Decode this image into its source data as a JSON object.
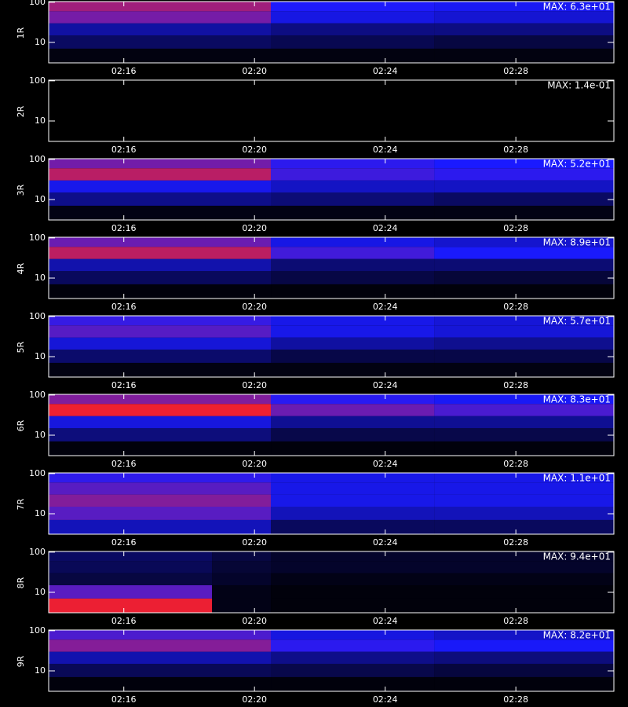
{
  "chart_data": [
    {
      "type": "heatmap",
      "y_label": "1R",
      "annotation": {
        "value": 63,
        "label": "MAX: 6.3e+01"
      },
      "log_y": true,
      "colormap": [
        "#000000",
        "#1a1aff",
        "#ff2020",
        "#ffff00",
        "#ffffff"
      ],
      "x": [
        133.7,
        140.5,
        145.5,
        151
      ],
      "y": [
        3.1,
        7,
        15,
        30,
        60,
        104
      ],
      "values": [
        [
          1,
          1,
          1
        ],
        [
          6,
          5,
          4
        ],
        [
          10,
          8,
          8
        ],
        [
          22,
          14,
          13
        ],
        [
          25,
          16,
          15
        ]
      ],
      "xlim": [
        133.7,
        151
      ],
      "xticks": [
        {
          "value": 136,
          "label": "02:16"
        },
        {
          "value": 140,
          "label": "02:20"
        },
        {
          "value": 144,
          "label": "02:24"
        },
        {
          "value": 148,
          "label": "02:28"
        }
      ],
      "ylim": [
        3.1,
        104
      ],
      "yticks": [
        10,
        100
      ]
    },
    {
      "type": "heatmap",
      "y_label": "2R",
      "annotation": {
        "value": 0.14,
        "label": "MAX: 1.4e-01"
      },
      "log_y": true,
      "colormap": [
        "#000000",
        "#1a1aff",
        "#ff2020",
        "#ffff00",
        "#ffffff"
      ],
      "x": [
        133.7,
        140.5,
        145.5,
        151
      ],
      "y": [
        3.1,
        7,
        15,
        30,
        60,
        104
      ],
      "values": [
        [
          0,
          0,
          0
        ],
        [
          0,
          0,
          0
        ],
        [
          0,
          0,
          0
        ],
        [
          0,
          0,
          0
        ],
        [
          0,
          0,
          0
        ]
      ],
      "xlim": [
        133.7,
        151
      ],
      "xticks": [
        {
          "value": 136,
          "label": "02:16"
        },
        {
          "value": 140,
          "label": "02:20"
        },
        {
          "value": 144,
          "label": "02:24"
        },
        {
          "value": 148,
          "label": "02:28"
        }
      ],
      "ylim": [
        3.1,
        104
      ],
      "yticks": [
        10,
        100
      ]
    },
    {
      "type": "heatmap",
      "y_label": "3R",
      "annotation": {
        "value": 52,
        "label": "MAX: 5.2e+01"
      },
      "log_y": true,
      "colormap": [
        "#000000",
        "#1a1aff",
        "#ff2020",
        "#ffff00",
        "#ffffff"
      ],
      "x": [
        133.7,
        140.5,
        145.5,
        151
      ],
      "y": [
        3.1,
        7,
        15,
        30,
        60,
        104
      ],
      "values": [
        [
          1,
          1,
          1
        ],
        [
          7,
          6,
          5
        ],
        [
          12,
          10,
          10
        ],
        [
          22,
          15,
          14
        ],
        [
          18,
          14,
          13
        ]
      ],
      "xlim": [
        133.7,
        151
      ],
      "xticks": [
        {
          "value": 136,
          "label": "02:16"
        },
        {
          "value": 140,
          "label": "02:20"
        },
        {
          "value": 144,
          "label": "02:24"
        },
        {
          "value": 148,
          "label": "02:28"
        }
      ],
      "ylim": [
        3.1,
        104
      ],
      "yticks": [
        10,
        100
      ]
    },
    {
      "type": "heatmap",
      "y_label": "4R",
      "annotation": {
        "value": 89,
        "label": "MAX: 8.9e+01"
      },
      "log_y": true,
      "colormap": [
        "#000000",
        "#1a1aff",
        "#ff2020",
        "#ffff00",
        "#ffffff"
      ],
      "x": [
        133.7,
        140.5,
        145.5,
        151
      ],
      "y": [
        3.1,
        7,
        15,
        30,
        60,
        104
      ],
      "values": [
        [
          1,
          1,
          1
        ],
        [
          8,
          6,
          5
        ],
        [
          15,
          10,
          10
        ],
        [
          38,
          26,
          22
        ],
        [
          30,
          20,
          18
        ]
      ],
      "xlim": [
        133.7,
        151
      ],
      "xticks": [
        {
          "value": 136,
          "label": "02:16"
        },
        {
          "value": 140,
          "label": "02:20"
        },
        {
          "value": 144,
          "label": "02:24"
        },
        {
          "value": 148,
          "label": "02:28"
        }
      ],
      "ylim": [
        3.1,
        104
      ],
      "yticks": [
        10,
        100
      ]
    },
    {
      "type": "heatmap",
      "y_label": "5R",
      "annotation": {
        "value": 57,
        "label": "MAX: 5.7e+01"
      },
      "log_y": true,
      "colormap": [
        "#000000",
        "#1a1aff",
        "#ff2020",
        "#ffff00",
        "#ffffff"
      ],
      "x": [
        133.7,
        140.5,
        145.5,
        151
      ],
      "y": [
        3.1,
        7,
        15,
        30,
        60,
        104
      ],
      "values": [
        [
          1,
          1,
          1
        ],
        [
          6,
          4,
          4
        ],
        [
          12,
          9,
          8
        ],
        [
          18,
          13,
          12
        ],
        [
          16,
          13,
          12
        ]
      ],
      "xlim": [
        133.7,
        151
      ],
      "xticks": [
        {
          "value": 136,
          "label": "02:16"
        },
        {
          "value": 140,
          "label": "02:20"
        },
        {
          "value": 144,
          "label": "02:24"
        },
        {
          "value": 148,
          "label": "02:28"
        }
      ],
      "ylim": [
        3.1,
        104
      ],
      "yticks": [
        10,
        100
      ]
    },
    {
      "type": "heatmap",
      "y_label": "6R",
      "annotation": {
        "value": 83,
        "label": "MAX: 8.3e+01"
      },
      "log_y": true,
      "colormap": [
        "#000000",
        "#1a1aff",
        "#ff2020",
        "#ffff00",
        "#ffffff"
      ],
      "x": [
        133.7,
        140.5,
        145.5,
        151
      ],
      "y": [
        3.1,
        7,
        15,
        30,
        60,
        104
      ],
      "values": [
        [
          1,
          1,
          1
        ],
        [
          10,
          6,
          6
        ],
        [
          18,
          12,
          12
        ],
        [
          40,
          28,
          25
        ],
        [
          30,
          22,
          20
        ]
      ],
      "xlim": [
        133.7,
        151
      ],
      "xticks": [
        {
          "value": 136,
          "label": "02:16"
        },
        {
          "value": 140,
          "label": "02:20"
        },
        {
          "value": 144,
          "label": "02:24"
        },
        {
          "value": 148,
          "label": "02:28"
        }
      ],
      "ylim": [
        3.1,
        104
      ],
      "yticks": [
        10,
        100
      ]
    },
    {
      "type": "heatmap",
      "y_label": "7R",
      "annotation": {
        "value": 11,
        "label": "MAX: 1.1e+01"
      },
      "log_y": true,
      "colormap": [
        "#000000",
        "#1a1aff",
        "#ff2020",
        "#ffff00",
        "#ffffff"
      ],
      "x": [
        133.7,
        140.5,
        145.5,
        151
      ],
      "y": [
        3.1,
        7,
        15,
        30,
        60,
        104
      ],
      "values": [
        [
          2,
          1,
          1
        ],
        [
          3.5,
          2,
          2
        ],
        [
          4,
          2.5,
          2.5
        ],
        [
          3.5,
          2.5,
          2.5
        ],
        [
          3,
          2.5,
          2.5
        ]
      ],
      "xlim": [
        133.7,
        151
      ],
      "xticks": [
        {
          "value": 136,
          "label": "02:16"
        },
        {
          "value": 140,
          "label": "02:20"
        },
        {
          "value": 144,
          "label": "02:24"
        },
        {
          "value": 148,
          "label": "02:28"
        }
      ],
      "ylim": [
        3.1,
        104
      ],
      "yticks": [
        10,
        100
      ]
    },
    {
      "type": "heatmap",
      "y_label": "8R",
      "annotation": {
        "value": 94,
        "label": "MAX: 9.4e+01"
      },
      "log_y": true,
      "colormap": [
        "#000000",
        "#1a1aff",
        "#ff2020",
        "#ffff00",
        "#ffffff"
      ],
      "x": [
        133.7,
        138.7,
        140.5,
        151
      ],
      "y": [
        3.1,
        7,
        15,
        30,
        60,
        104
      ],
      "values": [
        [
          45,
          2,
          1
        ],
        [
          30,
          2,
          1
        ],
        [
          6,
          4,
          2
        ],
        [
          8,
          5,
          4
        ],
        [
          9,
          6,
          4
        ]
      ],
      "xlim": [
        133.7,
        151
      ],
      "xticks": [
        {
          "value": 136,
          "label": "02:16"
        },
        {
          "value": 140,
          "label": "02:20"
        },
        {
          "value": 144,
          "label": "02:24"
        },
        {
          "value": 148,
          "label": "02:28"
        }
      ],
      "ylim": [
        3.1,
        104
      ],
      "yticks": [
        10,
        100
      ]
    },
    {
      "type": "heatmap",
      "y_label": "9R",
      "annotation": {
        "value": 82,
        "label": "MAX: 8.2e+01"
      },
      "log_y": true,
      "colormap": [
        "#000000",
        "#1a1aff",
        "#ff2020",
        "#ffff00",
        "#ffffff"
      ],
      "x": [
        133.7,
        140.5,
        145.5,
        151
      ],
      "y": [
        3.1,
        7,
        15,
        30,
        60,
        104
      ],
      "values": [
        [
          1,
          1,
          1
        ],
        [
          7,
          6,
          5
        ],
        [
          14,
          11,
          10
        ],
        [
          30,
          22,
          20
        ],
        [
          25,
          18,
          16
        ]
      ],
      "xlim": [
        133.7,
        151
      ],
      "xticks": [
        {
          "value": 136,
          "label": "02:16"
        },
        {
          "value": 140,
          "label": "02:20"
        },
        {
          "value": 144,
          "label": "02:24"
        },
        {
          "value": 148,
          "label": "02:28"
        }
      ],
      "ylim": [
        3.1,
        104
      ],
      "yticks": [
        10,
        100
      ]
    }
  ]
}
